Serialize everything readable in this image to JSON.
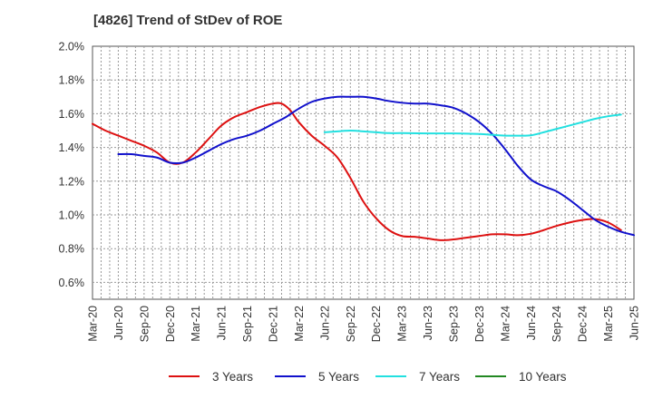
{
  "chart_data": {
    "type": "line",
    "title": "[4826]  Trend of StDev of ROE",
    "xlabel": "",
    "ylabel": "",
    "x_ticks": [
      "Mar-20",
      "Jun-20",
      "Sep-20",
      "Dec-20",
      "Mar-21",
      "Jun-21",
      "Sep-21",
      "Dec-21",
      "Mar-22",
      "Jun-22",
      "Sep-22",
      "Dec-22",
      "Mar-23",
      "Jun-23",
      "Sep-23",
      "Dec-23",
      "Mar-24",
      "Jun-24",
      "Sep-24",
      "Dec-24",
      "Mar-25",
      "Jun-25"
    ],
    "y_ticks": [
      "0.6%",
      "0.8%",
      "1.0%",
      "1.2%",
      "1.4%",
      "1.6%",
      "1.8%",
      "2.0%"
    ],
    "ylim": [
      0.5,
      2.0
    ],
    "grid": true,
    "legend_position": "bottom",
    "series": [
      {
        "name": "3 Years",
        "color": "#dd1111",
        "points": [
          [
            0,
            1.54
          ],
          [
            0.5,
            1.5
          ],
          [
            1,
            1.47
          ],
          [
            1.5,
            1.44
          ],
          [
            2,
            1.41
          ],
          [
            2.5,
            1.37
          ],
          [
            3,
            1.31
          ],
          [
            3.5,
            1.31
          ],
          [
            4,
            1.37
          ],
          [
            4.5,
            1.45
          ],
          [
            5,
            1.53
          ],
          [
            5.5,
            1.58
          ],
          [
            6,
            1.61
          ],
          [
            6.5,
            1.64
          ],
          [
            7,
            1.66
          ],
          [
            7.33,
            1.66
          ],
          [
            7.67,
            1.62
          ],
          [
            8,
            1.55
          ],
          [
            8.5,
            1.47
          ],
          [
            9,
            1.41
          ],
          [
            9.5,
            1.34
          ],
          [
            10,
            1.22
          ],
          [
            10.5,
            1.08
          ],
          [
            11,
            0.98
          ],
          [
            11.5,
            0.91
          ],
          [
            12,
            0.875
          ],
          [
            12.5,
            0.87
          ],
          [
            13,
            0.86
          ],
          [
            13.5,
            0.85
          ],
          [
            14,
            0.855
          ],
          [
            14.5,
            0.865
          ],
          [
            15,
            0.875
          ],
          [
            15.5,
            0.885
          ],
          [
            16,
            0.885
          ],
          [
            16.5,
            0.88
          ],
          [
            17,
            0.888
          ],
          [
            17.5,
            0.91
          ],
          [
            18,
            0.935
          ],
          [
            18.5,
            0.955
          ],
          [
            19,
            0.97
          ],
          [
            19.5,
            0.975
          ],
          [
            20,
            0.955
          ],
          [
            20.5,
            0.91
          ]
        ]
      },
      {
        "name": "5 Years",
        "color": "#1111cc",
        "points": [
          [
            1,
            1.36
          ],
          [
            1.5,
            1.36
          ],
          [
            2,
            1.35
          ],
          [
            2.5,
            1.34
          ],
          [
            3,
            1.31
          ],
          [
            3.5,
            1.31
          ],
          [
            4,
            1.34
          ],
          [
            4.5,
            1.38
          ],
          [
            5,
            1.42
          ],
          [
            5.5,
            1.45
          ],
          [
            6,
            1.47
          ],
          [
            6.5,
            1.5
          ],
          [
            7,
            1.54
          ],
          [
            7.5,
            1.58
          ],
          [
            8,
            1.63
          ],
          [
            8.5,
            1.67
          ],
          [
            9,
            1.69
          ],
          [
            9.5,
            1.7
          ],
          [
            10,
            1.7
          ],
          [
            10.5,
            1.7
          ],
          [
            11,
            1.69
          ],
          [
            11.5,
            1.675
          ],
          [
            12,
            1.665
          ],
          [
            12.5,
            1.66
          ],
          [
            13,
            1.66
          ],
          [
            13.5,
            1.65
          ],
          [
            14,
            1.635
          ],
          [
            14.5,
            1.6
          ],
          [
            15,
            1.55
          ],
          [
            15.5,
            1.48
          ],
          [
            16,
            1.39
          ],
          [
            16.5,
            1.29
          ],
          [
            17,
            1.21
          ],
          [
            17.5,
            1.17
          ],
          [
            18,
            1.14
          ],
          [
            18.5,
            1.09
          ],
          [
            19,
            1.03
          ],
          [
            19.5,
            0.97
          ],
          [
            20,
            0.93
          ],
          [
            20.5,
            0.9
          ],
          [
            21,
            0.88
          ]
        ]
      },
      {
        "name": "7 Years",
        "color": "#22e0e0",
        "points": [
          [
            9,
            1.49
          ],
          [
            9.5,
            1.495
          ],
          [
            10,
            1.5
          ],
          [
            10.5,
            1.495
          ],
          [
            11,
            1.49
          ],
          [
            11.5,
            1.485
          ],
          [
            12,
            1.485
          ],
          [
            13,
            1.483
          ],
          [
            14,
            1.483
          ],
          [
            15,
            1.48
          ],
          [
            15.5,
            1.475
          ],
          [
            16,
            1.47
          ],
          [
            16.5,
            1.47
          ],
          [
            17,
            1.472
          ],
          [
            17.5,
            1.49
          ],
          [
            18,
            1.51
          ],
          [
            18.5,
            1.53
          ],
          [
            19,
            1.55
          ],
          [
            19.5,
            1.57
          ],
          [
            20,
            1.585
          ],
          [
            20.5,
            1.595
          ]
        ]
      },
      {
        "name": "10 Years",
        "color": "#228822",
        "points": []
      }
    ]
  }
}
